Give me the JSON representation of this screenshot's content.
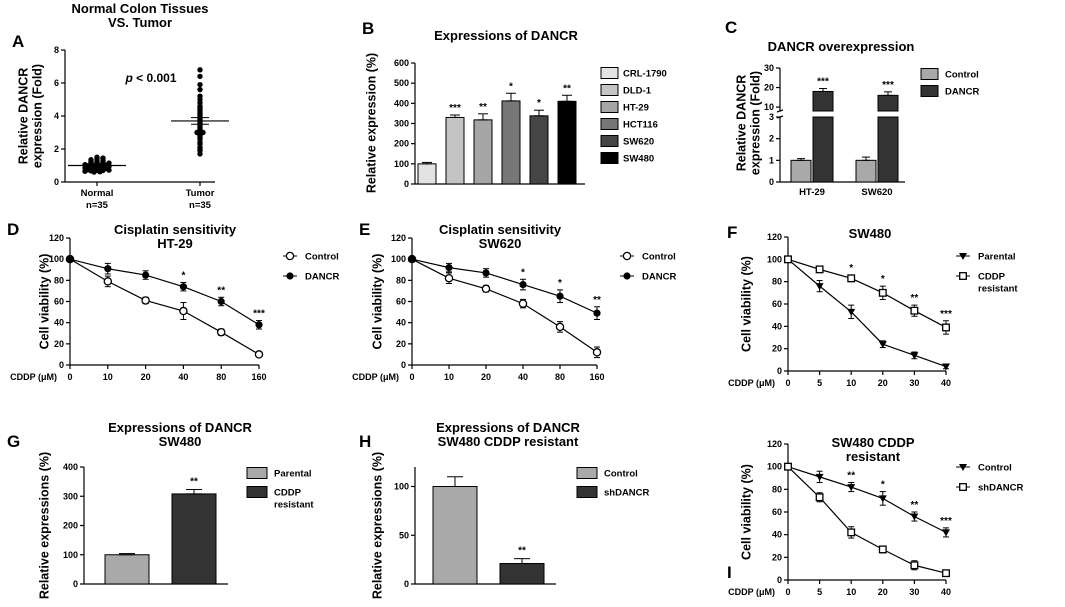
{
  "chart_data": [
    {
      "panel": "A",
      "type": "scatter",
      "title_lines": [
        "Normal Colon Tissues",
        "VS. Tumor"
      ],
      "ylabel_lines": [
        "Relative DANCR",
        "expression (Fold)"
      ],
      "ylim": [
        0,
        8
      ],
      "yticks": [
        0,
        2,
        4,
        6,
        8
      ],
      "categories": [
        [
          "Normal",
          "n=35"
        ],
        [
          "Tumor",
          "n=35"
        ]
      ],
      "annotation": {
        "pre": "p",
        "post": " < 0.001"
      },
      "series": [
        {
          "name": "Normal",
          "mean": 1.0,
          "sem": 0.04,
          "points": [
            0.6,
            0.62,
            0.65,
            0.68,
            0.7,
            0.7,
            0.72,
            0.75,
            0.78,
            0.8,
            0.82,
            0.85,
            0.88,
            0.9,
            0.92,
            0.95,
            0.98,
            1.0,
            1.0,
            1.02,
            1.05,
            1.08,
            1.1,
            1.12,
            1.15,
            1.18,
            1.2,
            1.22,
            1.25,
            1.28,
            1.3,
            1.35,
            1.4,
            1.45,
            1.5
          ]
        },
        {
          "name": "Tumor",
          "mean": 3.7,
          "sem": 0.2,
          "points": [
            1.7,
            1.9,
            2.0,
            2.1,
            2.3,
            2.4,
            2.6,
            2.7,
            2.8,
            2.9,
            3.0,
            3.0,
            3.1,
            3.2,
            3.3,
            3.4,
            3.5,
            3.6,
            3.7,
            3.8,
            3.9,
            4.0,
            4.1,
            4.2,
            4.3,
            4.4,
            4.5,
            4.6,
            4.8,
            5.0,
            5.2,
            5.6,
            5.9,
            6.4,
            6.8
          ]
        }
      ]
    },
    {
      "panel": "B",
      "type": "bar",
      "title": "Expressions of DANCR",
      "ylabel": "Relative expression (%)",
      "ylim": [
        0,
        600
      ],
      "yticks": [
        0,
        100,
        200,
        300,
        400,
        500,
        600
      ],
      "categories": [
        "CRL-1790",
        "DLD-1",
        "HT-29",
        "HCT116",
        "SW620",
        "SW480"
      ],
      "values": [
        100,
        330,
        318,
        412,
        338,
        410
      ],
      "errors": [
        7,
        12,
        30,
        38,
        28,
        30
      ],
      "stars": [
        "",
        "***",
        "**",
        "*",
        "*",
        "**"
      ],
      "colors": [
        "#e3e3e3",
        "#c4c4c4",
        "#a6a6a6",
        "#777777",
        "#454545",
        "#000000"
      ]
    },
    {
      "panel": "C",
      "type": "bar",
      "title": "DANCR overexpression",
      "ylabel_lines": [
        "Relative DANCR",
        "expression (Fold)"
      ],
      "yticks_lower": [
        0,
        1,
        2,
        3
      ],
      "yticks_upper": [
        10,
        20,
        30
      ],
      "categories": [
        "HT-29",
        "SW620"
      ],
      "series": [
        {
          "name": "Control",
          "color": "#a9a9a9",
          "values": [
            1.0,
            1.0
          ],
          "errors": [
            0.08,
            0.15
          ]
        },
        {
          "name": "DANCR",
          "color": "#333333",
          "values": [
            18,
            16
          ],
          "errors": [
            1.5,
            1.8
          ]
        }
      ],
      "stars": [
        "***",
        "***"
      ]
    },
    {
      "panel": "D",
      "type": "line",
      "title_lines": [
        "Cisplatin sensitivity",
        "HT-29"
      ],
      "ylabel": "Cell viability (%)",
      "xlabel_pre": "CDDP (",
      "xlabel_mu": "μ",
      "xlabel_post": "M)",
      "x": [
        0,
        10,
        20,
        40,
        80,
        160
      ],
      "ylim": [
        0,
        120
      ],
      "yticks": [
        0,
        20,
        40,
        60,
        80,
        100,
        120
      ],
      "series": [
        {
          "name": "Control",
          "marker": "open-circle",
          "values": [
            100,
            79,
            61,
            51,
            31,
            10
          ],
          "errors": [
            3,
            5,
            3,
            8,
            3,
            2
          ]
        },
        {
          "name": "DANCR",
          "marker": "filled-circle",
          "values": [
            100,
            91,
            85,
            74,
            60,
            38
          ],
          "errors": [
            3,
            5,
            4,
            4,
            4,
            4
          ]
        }
      ],
      "stars": [
        "",
        "",
        "",
        "*",
        "**",
        "***"
      ]
    },
    {
      "panel": "E",
      "type": "line",
      "title_lines": [
        "Cisplatin sensitivity",
        "SW620"
      ],
      "ylabel": "Cell viability (%)",
      "xlabel_pre": "CDDP (",
      "xlabel_mu": "μ",
      "xlabel_post": "M)",
      "x": [
        0,
        10,
        20,
        40,
        80,
        160
      ],
      "ylim": [
        0,
        120
      ],
      "yticks": [
        0,
        20,
        40,
        60,
        80,
        100,
        120
      ],
      "series": [
        {
          "name": "Control",
          "marker": "open-circle",
          "values": [
            100,
            82,
            72,
            58,
            36,
            12
          ],
          "errors": [
            3,
            5,
            3,
            4,
            5,
            5
          ]
        },
        {
          "name": "DANCR",
          "marker": "filled-circle",
          "values": [
            100,
            92,
            87,
            76,
            65,
            49
          ],
          "errors": [
            3,
            4,
            4,
            5,
            6,
            6
          ]
        }
      ],
      "stars": [
        "",
        "",
        "",
        "*",
        "*",
        "**"
      ]
    },
    {
      "panel": "F",
      "type": "line",
      "title": "SW480",
      "ylabel": "Cell viability (%)",
      "xlabel_pre": "CDDP (",
      "xlabel_mu": "μ",
      "xlabel_post": "M)",
      "x": [
        0,
        5,
        10,
        20,
        30,
        40
      ],
      "ylim": [
        0,
        120
      ],
      "yticks": [
        0,
        20,
        40,
        60,
        80,
        100,
        120
      ],
      "series": [
        {
          "name": "Parental",
          "marker": "filled-triangle",
          "values": [
            100,
            76,
            53,
            24,
            14,
            4
          ],
          "errors": [
            3,
            5,
            6,
            3,
            3,
            2
          ]
        },
        {
          "name_lines": [
            "CDDP",
            "resistant"
          ],
          "marker": "open-square",
          "values": [
            100,
            91,
            83,
            70,
            54,
            39
          ],
          "errors": [
            3,
            2,
            3,
            6,
            5,
            6
          ]
        }
      ],
      "stars": [
        "",
        "",
        "*",
        "*",
        "**",
        "***"
      ]
    },
    {
      "panel": "G",
      "type": "bar",
      "title_lines": [
        "Expressions of DANCR",
        "SW480"
      ],
      "ylabel": "Relative expressions (%)",
      "ylim": [
        0,
        400
      ],
      "yticks": [
        0,
        100,
        200,
        300,
        400
      ],
      "series": [
        {
          "name": "Parental",
          "color": "#a9a9a9",
          "value": 100,
          "error": 4
        },
        {
          "name_lines": [
            "CDDP",
            "resistant"
          ],
          "color": "#333333",
          "value": 308,
          "error": 15
        }
      ],
      "stars": [
        "",
        "**"
      ]
    },
    {
      "panel": "H",
      "type": "bar",
      "title_lines": [
        "Expressions of DANCR",
        "SW480 CDDP resistant"
      ],
      "ylabel": "Relative expressions (%)",
      "ylim": [
        0,
        120
      ],
      "yticks": [
        0,
        50,
        100
      ],
      "series": [
        {
          "name": "Control",
          "color": "#a9a9a9",
          "value": 100,
          "error": 10
        },
        {
          "name": "shDANCR",
          "color": "#333333",
          "value": 21,
          "error": 5
        }
      ],
      "stars": [
        "",
        "**"
      ]
    },
    {
      "panel": "I",
      "type": "line",
      "title_lines": [
        "SW480 CDDP",
        "resistant"
      ],
      "ylabel": "Cell viability (%)",
      "xlabel_pre": "CDDP (",
      "xlabel_mu": "μ",
      "xlabel_post": "M)",
      "x": [
        0,
        5,
        10,
        20,
        30,
        40
      ],
      "ylim": [
        0,
        120
      ],
      "yticks": [
        0,
        20,
        40,
        60,
        80,
        100,
        120
      ],
      "series": [
        {
          "name": "Control",
          "marker": "filled-triangle",
          "values": [
            100,
            91,
            82,
            72,
            56,
            42
          ],
          "errors": [
            3,
            5,
            4,
            6,
            4,
            4
          ]
        },
        {
          "name": "shDANCR",
          "marker": "open-square",
          "values": [
            100,
            73,
            42,
            27,
            13,
            6
          ],
          "errors": [
            3,
            4,
            5,
            3,
            4,
            2
          ]
        }
      ],
      "stars": [
        "",
        "",
        "**",
        "*",
        "**",
        "***"
      ]
    }
  ]
}
